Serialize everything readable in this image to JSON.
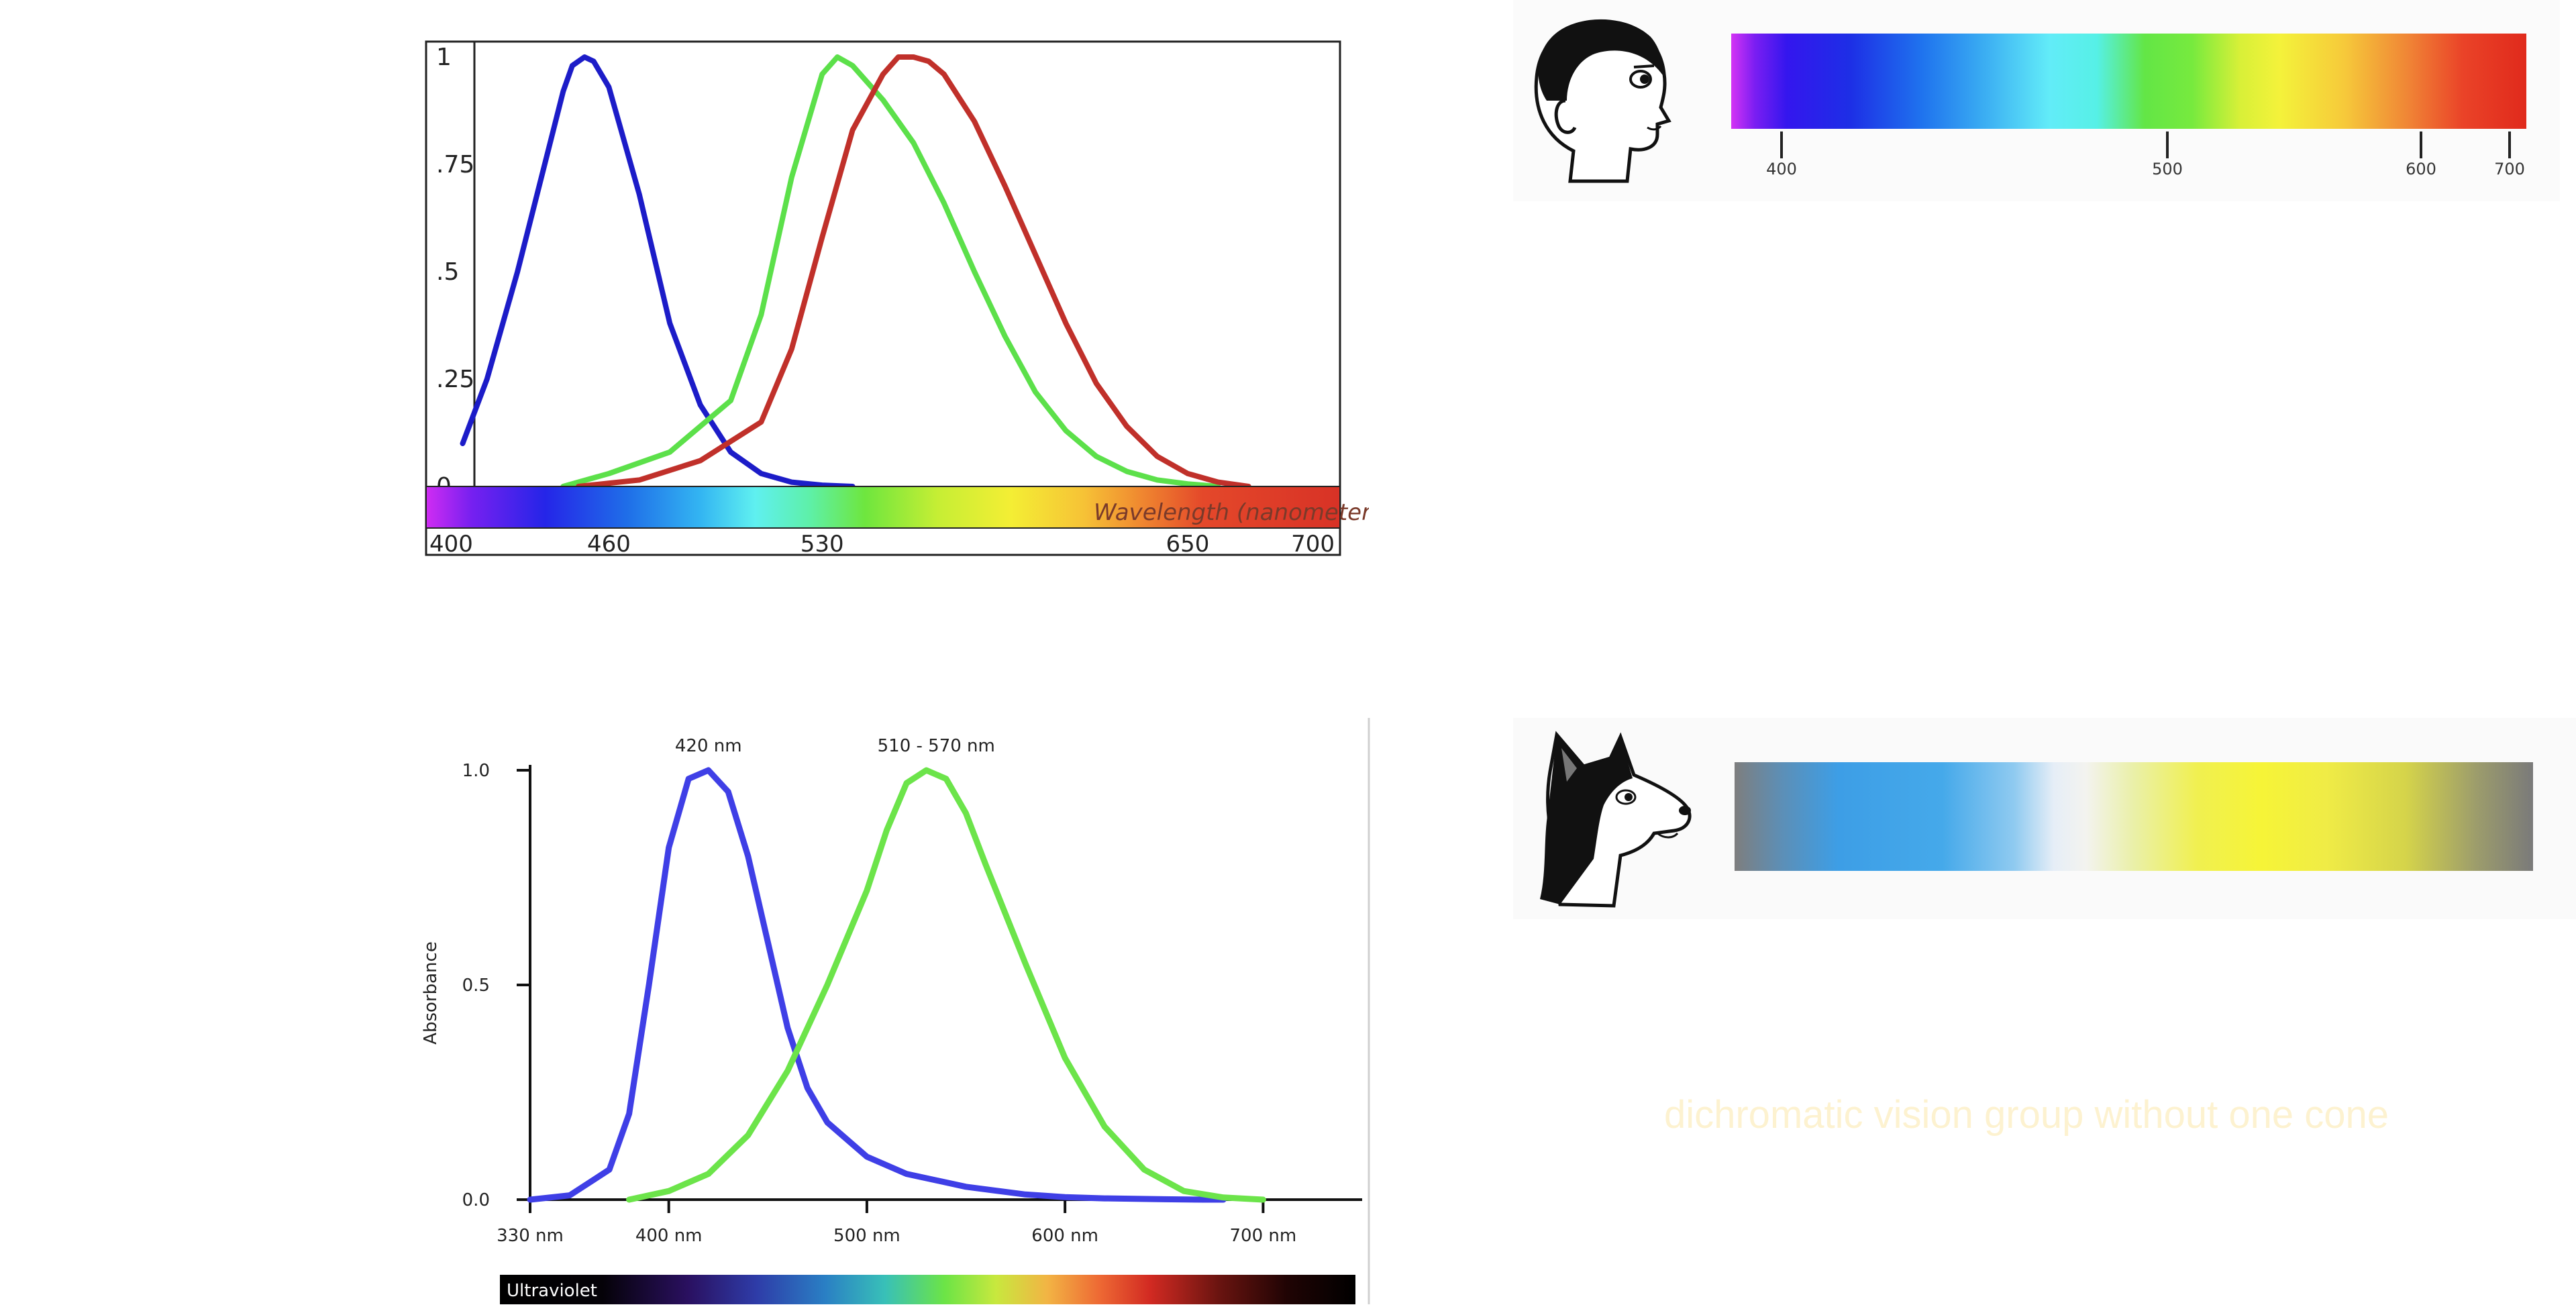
{
  "caption": "dichromatic vision group without one cone",
  "human_spectrum_ticks": [
    {
      "nm": 400,
      "label": "400"
    },
    {
      "nm": 500,
      "label": "500"
    },
    {
      "nm": 600,
      "label": "600"
    },
    {
      "nm": 700,
      "label": "700"
    }
  ],
  "chart_data": [
    {
      "type": "line",
      "title": "",
      "xlabel": "",
      "ylabel": "",
      "wavelength_bar_label": "Wavelength (nanometers)",
      "x_ticks": [
        400,
        460,
        530,
        650,
        700
      ],
      "y_ticks": [
        {
          "value": 0,
          "label": "0"
        },
        {
          "value": 0.25,
          "label": ".25"
        },
        {
          "value": 0.5,
          "label": ".5"
        },
        {
          "value": 0.75,
          "label": ".75"
        },
        {
          "value": 1,
          "label": "1"
        }
      ],
      "xlim": [
        400,
        700
      ],
      "ylim": [
        0,
        1
      ],
      "series": [
        {
          "color": "#1c1cc8",
          "x": [
            412,
            420,
            430,
            440,
            445,
            448,
            452,
            455,
            460,
            470,
            480,
            490,
            500,
            510,
            520,
            530,
            540
          ],
          "y": [
            0.1,
            0.25,
            0.5,
            0.78,
            0.92,
            0.98,
            1.0,
            0.99,
            0.93,
            0.68,
            0.38,
            0.19,
            0.08,
            0.03,
            0.01,
            0.003,
            0.0
          ]
        },
        {
          "color": "#5ce04a",
          "x": [
            445,
            460,
            480,
            500,
            510,
            520,
            530,
            535,
            540,
            550,
            560,
            570,
            580,
            590,
            600,
            610,
            620,
            630,
            640,
            650,
            660
          ],
          "y": [
            0.0,
            0.03,
            0.08,
            0.2,
            0.4,
            0.72,
            0.96,
            1.0,
            0.98,
            0.9,
            0.8,
            0.66,
            0.5,
            0.35,
            0.22,
            0.13,
            0.07,
            0.035,
            0.015,
            0.006,
            0.0
          ]
        },
        {
          "color": "#c0302a",
          "x": [
            450,
            470,
            490,
            510,
            520,
            530,
            540,
            550,
            555,
            560,
            565,
            570,
            580,
            590,
            600,
            610,
            620,
            630,
            640,
            650,
            660,
            670
          ],
          "y": [
            0.0,
            0.015,
            0.06,
            0.15,
            0.32,
            0.58,
            0.83,
            0.96,
            1.0,
            1.0,
            0.99,
            0.96,
            0.85,
            0.7,
            0.54,
            0.38,
            0.24,
            0.14,
            0.07,
            0.03,
            0.01,
            0.0
          ]
        }
      ]
    },
    {
      "type": "line",
      "title": "",
      "ylabel": "Absorbance",
      "xlabel": "",
      "x_tick_labels": [
        "330 nm",
        "400 nm",
        "500 nm",
        "600 nm",
        "700 nm"
      ],
      "x_ticks": [
        330,
        400,
        500,
        600,
        700
      ],
      "y_tick_labels": [
        "0.0",
        "0.5",
        "1.0"
      ],
      "y_ticks": [
        0,
        0.5,
        1
      ],
      "xlim": [
        330,
        750
      ],
      "ylim": [
        0,
        1
      ],
      "annotations": [
        {
          "text": "420 nm",
          "x": 420
        },
        {
          "text": "510 - 570 nm",
          "x": 535
        }
      ],
      "spectrum_label": "Ultraviolet",
      "series": [
        {
          "color": "#3f3fe6",
          "x": [
            330,
            350,
            370,
            380,
            390,
            400,
            410,
            420,
            430,
            440,
            450,
            460,
            470,
            480,
            500,
            520,
            550,
            580,
            600,
            620,
            650,
            670,
            680
          ],
          "y": [
            0.0,
            0.01,
            0.07,
            0.2,
            0.5,
            0.82,
            0.98,
            1.0,
            0.95,
            0.8,
            0.6,
            0.4,
            0.26,
            0.18,
            0.1,
            0.06,
            0.03,
            0.012,
            0.006,
            0.003,
            0.001,
            0.0,
            0.0
          ]
        },
        {
          "color": "#6ce44a",
          "x": [
            380,
            400,
            420,
            440,
            460,
            480,
            500,
            510,
            520,
            530,
            540,
            550,
            560,
            580,
            600,
            620,
            640,
            660,
            680,
            700
          ],
          "y": [
            0.0,
            0.02,
            0.06,
            0.15,
            0.3,
            0.5,
            0.72,
            0.86,
            0.97,
            1.0,
            0.98,
            0.9,
            0.78,
            0.55,
            0.33,
            0.17,
            0.07,
            0.02,
            0.005,
            0.0
          ]
        }
      ]
    }
  ]
}
